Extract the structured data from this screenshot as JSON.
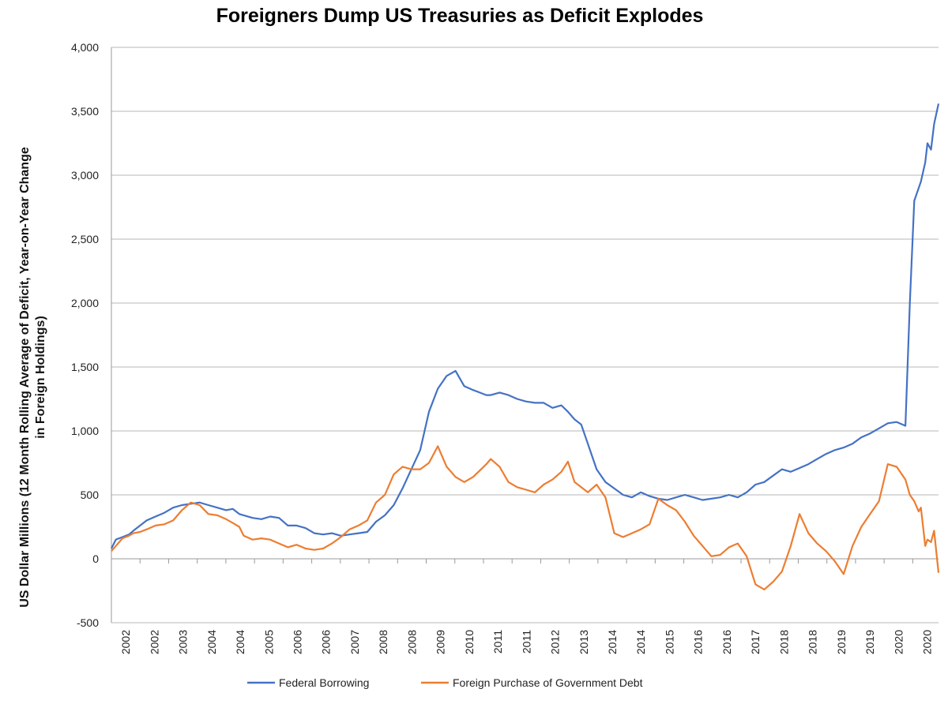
{
  "chart_data": {
    "type": "line",
    "title": "Foreigners Dump US Treasuries as Deficit Explodes",
    "ylabel_line1": "US Dollar Millions (12 Month Rolling Average of Deficit, Year-on-Year Change",
    "ylabel_line2": "in Foreign Holdings)",
    "xlabel": "",
    "ylim": [
      -500,
      4000
    ],
    "yticks": [
      -500,
      0,
      500,
      1000,
      1500,
      2000,
      2500,
      3000,
      3500,
      4000
    ],
    "ytick_labels": [
      "-500",
      "0",
      "500",
      "1,000",
      "1,500",
      "2,000",
      "2,500",
      "3,000",
      "3,500",
      "4,000"
    ],
    "xlim": [
      2002.0,
      2020.75
    ],
    "xtick_labels": [
      "2002",
      "2002",
      "2003",
      "2004",
      "2004",
      "2005",
      "2006",
      "2006",
      "2007",
      "2008",
      "2008",
      "2009",
      "2010",
      "2011",
      "2011",
      "2012",
      "2013",
      "2014",
      "2014",
      "2015",
      "2016",
      "2016",
      "2017",
      "2018",
      "2018",
      "2019",
      "2019",
      "2020",
      "2020"
    ],
    "legend_position": "bottom",
    "grid": true,
    "colors": {
      "federal": "#4472C4",
      "foreign": "#ED7D31"
    },
    "series": [
      {
        "name": "Federal Borrowing",
        "x": [
          2002.0,
          2002.1,
          2002.25,
          2002.4,
          2002.5,
          2002.65,
          2002.8,
          2003.0,
          2003.2,
          2003.4,
          2003.6,
          2003.8,
          2004.0,
          2004.2,
          2004.4,
          2004.6,
          2004.75,
          2004.9,
          2005.0,
          2005.2,
          2005.4,
          2005.6,
          2005.8,
          2006.0,
          2006.2,
          2006.4,
          2006.6,
          2006.8,
          2007.0,
          2007.2,
          2007.4,
          2007.6,
          2007.8,
          2008.0,
          2008.2,
          2008.4,
          2008.6,
          2008.8,
          2009.0,
          2009.2,
          2009.4,
          2009.6,
          2009.8,
          2010.0,
          2010.2,
          2010.35,
          2010.5,
          2010.6,
          2010.8,
          2011.0,
          2011.2,
          2011.4,
          2011.6,
          2011.8,
          2012.0,
          2012.2,
          2012.35,
          2012.5,
          2012.65,
          2012.8,
          2013.0,
          2013.2,
          2013.4,
          2013.6,
          2013.8,
          2014.0,
          2014.2,
          2014.4,
          2014.6,
          2014.8,
          2015.0,
          2015.2,
          2015.4,
          2015.6,
          2015.8,
          2016.0,
          2016.2,
          2016.4,
          2016.6,
          2016.8,
          2017.0,
          2017.2,
          2017.4,
          2017.6,
          2017.8,
          2018.0,
          2018.2,
          2018.4,
          2018.6,
          2018.8,
          2019.0,
          2019.2,
          2019.4,
          2019.6,
          2019.8,
          2020.0,
          2020.1,
          2020.2,
          2020.3,
          2020.35,
          2020.45,
          2020.5,
          2020.58,
          2020.65,
          2020.75
        ],
        "values": [
          80,
          150,
          170,
          190,
          220,
          260,
          300,
          330,
          360,
          400,
          420,
          430,
          440,
          420,
          400,
          380,
          390,
          350,
          340,
          320,
          310,
          330,
          320,
          260,
          260,
          240,
          200,
          190,
          200,
          180,
          190,
          200,
          210,
          290,
          340,
          420,
          550,
          700,
          850,
          1150,
          1330,
          1430,
          1470,
          1350,
          1320,
          1300,
          1280,
          1280,
          1300,
          1280,
          1250,
          1230,
          1220,
          1220,
          1180,
          1200,
          1150,
          1090,
          1050,
          900,
          700,
          600,
          550,
          500,
          480,
          520,
          490,
          470,
          460,
          480,
          500,
          480,
          460,
          470,
          480,
          500,
          480,
          520,
          580,
          600,
          650,
          700,
          680,
          710,
          740,
          780,
          820,
          850,
          870,
          900,
          950,
          980,
          1020,
          1060,
          1070,
          1040,
          2000,
          2800,
          2900,
          2950,
          3100,
          3250,
          3200,
          3400,
          3560
        ]
      },
      {
        "name": "Foreign Purchase of Government Debt",
        "x": [
          2002.0,
          2002.1,
          2002.25,
          2002.4,
          2002.5,
          2002.65,
          2002.8,
          2003.0,
          2003.2,
          2003.4,
          2003.6,
          2003.8,
          2004.0,
          2004.2,
          2004.4,
          2004.6,
          2004.75,
          2004.9,
          2005.0,
          2005.2,
          2005.4,
          2005.6,
          2005.8,
          2006.0,
          2006.2,
          2006.4,
          2006.6,
          2006.8,
          2007.0,
          2007.2,
          2007.4,
          2007.6,
          2007.8,
          2008.0,
          2008.2,
          2008.4,
          2008.6,
          2008.8,
          2009.0,
          2009.2,
          2009.4,
          2009.6,
          2009.8,
          2010.0,
          2010.2,
          2010.35,
          2010.5,
          2010.6,
          2010.8,
          2011.0,
          2011.2,
          2011.4,
          2011.6,
          2011.8,
          2012.0,
          2012.2,
          2012.35,
          2012.5,
          2012.65,
          2012.8,
          2013.0,
          2013.2,
          2013.4,
          2013.6,
          2013.8,
          2014.0,
          2014.2,
          2014.4,
          2014.6,
          2014.8,
          2015.0,
          2015.2,
          2015.4,
          2015.6,
          2015.8,
          2016.0,
          2016.2,
          2016.4,
          2016.6,
          2016.8,
          2017.0,
          2017.2,
          2017.4,
          2017.6,
          2017.8,
          2018.0,
          2018.2,
          2018.4,
          2018.6,
          2018.8,
          2019.0,
          2019.2,
          2019.4,
          2019.6,
          2019.8,
          2020.0,
          2020.1,
          2020.2,
          2020.3,
          2020.35,
          2020.45,
          2020.5,
          2020.58,
          2020.65,
          2020.75
        ],
        "values": [
          60,
          100,
          160,
          180,
          200,
          210,
          230,
          260,
          270,
          300,
          380,
          440,
          420,
          350,
          340,
          310,
          280,
          250,
          180,
          150,
          160,
          150,
          120,
          90,
          110,
          80,
          70,
          80,
          120,
          170,
          230,
          260,
          300,
          440,
          500,
          660,
          720,
          700,
          700,
          750,
          880,
          720,
          640,
          600,
          640,
          690,
          740,
          780,
          720,
          600,
          560,
          540,
          520,
          580,
          620,
          680,
          760,
          600,
          560,
          520,
          580,
          480,
          200,
          170,
          200,
          230,
          270,
          470,
          420,
          380,
          290,
          180,
          100,
          20,
          30,
          90,
          120,
          20,
          -200,
          -240,
          -180,
          -100,
          100,
          350,
          200,
          120,
          60,
          -20,
          -120,
          100,
          250,
          350,
          450,
          740,
          720,
          620,
          500,
          450,
          370,
          400,
          100,
          150,
          130,
          220,
          -110
        ]
      }
    ]
  }
}
